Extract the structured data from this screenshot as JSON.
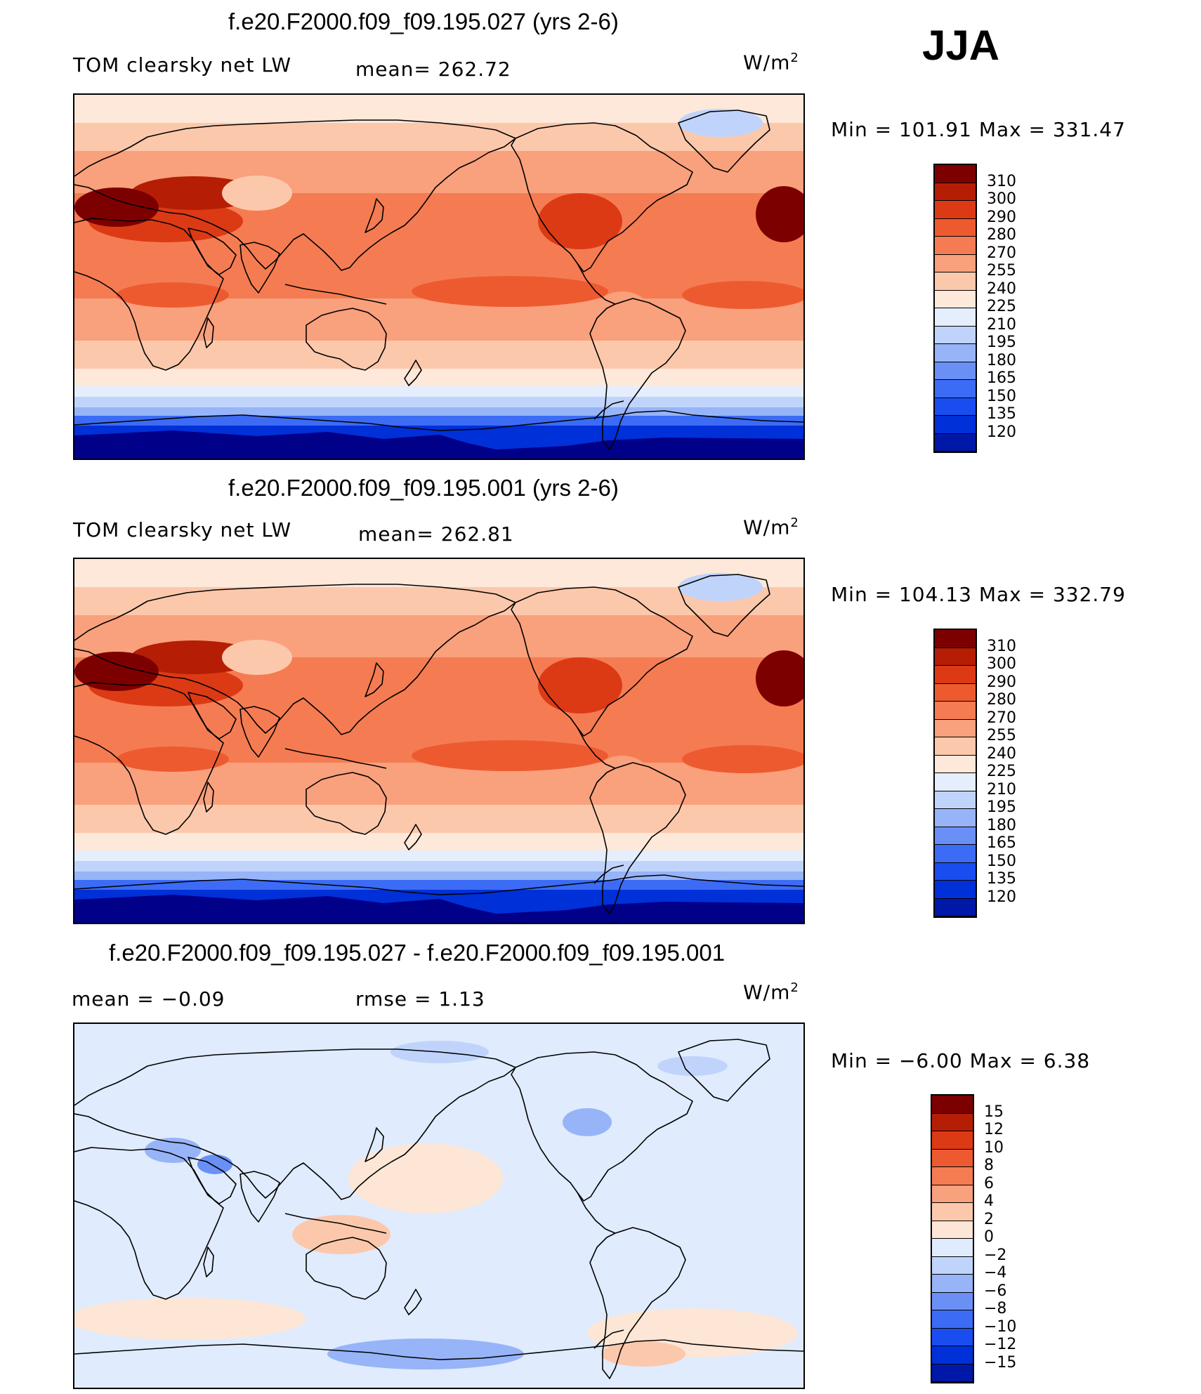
{
  "season": "JJA",
  "colors": {
    "coast": "#000000",
    "main_scale": [
      "#000088",
      "#0018a8",
      "#0030d8",
      "#1a4df0",
      "#3c6cf5",
      "#6b90f5",
      "#97b4f8",
      "#c0d4fb",
      "#e4eefd",
      "#fde8da",
      "#fcc8ac",
      "#f9a07c",
      "#f57c52",
      "#ee5a30",
      "#dc3a15",
      "#b51e05",
      "#7d0000"
    ],
    "diff_scale": [
      "#000088",
      "#0018a8",
      "#0030d8",
      "#1a4df0",
      "#3c6cf5",
      "#6b90f5",
      "#97b4f8",
      "#c0d4fb",
      "#e0ebfd",
      "#fde6d6",
      "#fcc8ac",
      "#f9a07c",
      "#f57c52",
      "#ee5a30",
      "#dc3a15",
      "#b51e05",
      "#7d0000"
    ]
  },
  "panels": [
    {
      "title": "f.e20.F2000.f09_f09.195.027 (yrs 2-6)",
      "left_label": "TOM clearsky net LW",
      "center_label": "mean=  262.72",
      "units": "W/m",
      "units_sup": "2",
      "minmax": "Min  =  101.91  Max  =  331.47",
      "ticks": [
        "310",
        "300",
        "290",
        "280",
        "270",
        "255",
        "240",
        "225",
        "210",
        "195",
        "180",
        "165",
        "150",
        "135",
        "120"
      ],
      "kind": "main"
    },
    {
      "title": "f.e20.F2000.f09_f09.195.001 (yrs 2-6)",
      "left_label": "TOM clearsky net LW",
      "center_label": "mean=  262.81",
      "units": "W/m",
      "units_sup": "2",
      "minmax": "Min  =  104.13  Max  =  332.79",
      "ticks": [
        "310",
        "300",
        "290",
        "280",
        "270",
        "255",
        "240",
        "225",
        "210",
        "195",
        "180",
        "165",
        "150",
        "135",
        "120"
      ],
      "kind": "main"
    },
    {
      "title": "f.e20.F2000.f09_f09.195.027 - f.e20.F2000.f09_f09.195.001",
      "left_label": "mean  =    −0.09",
      "center_label": "rmse  =     1.13",
      "units": "W/m",
      "units_sup": "2",
      "minmax": "Min  =    −6.00  Max  =      6.38",
      "ticks": [
        "15",
        "12",
        "10",
        "8",
        "6",
        "4",
        "2",
        "0",
        "−2",
        "−4",
        "−6",
        "−8",
        "−10",
        "−12",
        "−15"
      ],
      "kind": "diff"
    }
  ]
}
